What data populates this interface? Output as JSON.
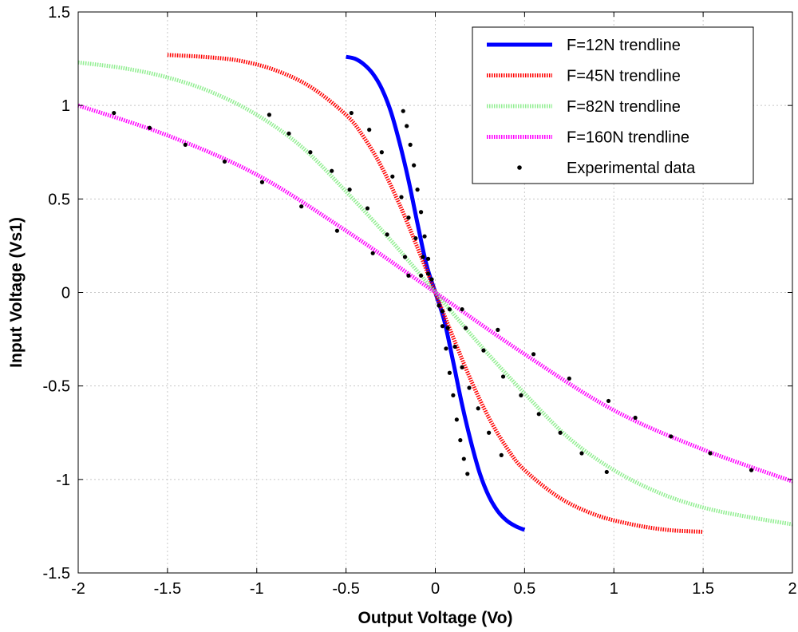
{
  "chart_data": {
    "type": "line",
    "xlabel": "Output Voltage (Vo)",
    "ylabel": "Input Voltage (Vs1)",
    "xlim": [
      -2,
      2
    ],
    "ylim": [
      -1.5,
      1.5
    ],
    "xticks": [
      -2,
      -1.5,
      -1,
      -0.5,
      0,
      0.5,
      1,
      1.5,
      2
    ],
    "xtick_labels": [
      "-2",
      "-1.5",
      "-1",
      "-0.5",
      "0",
      "0.5",
      "1",
      "1.5",
      "2"
    ],
    "yticks": [
      -1.5,
      -1,
      -0.5,
      0,
      0.5,
      1,
      1.5
    ],
    "ytick_labels": [
      "-1.5",
      "-1",
      "-0.5",
      "0",
      "0.5",
      "1",
      "1.5"
    ],
    "grid": true,
    "legend_position": "top-right",
    "series": [
      {
        "name": "F=12N trendline",
        "color": "#0000ff",
        "style": "solid",
        "x": [
          -0.5,
          -0.45,
          -0.4,
          -0.35,
          -0.3,
          -0.25,
          -0.2,
          -0.15,
          -0.1,
          -0.05,
          0,
          0.05,
          0.1,
          0.15,
          0.2,
          0.25,
          0.3,
          0.35,
          0.4,
          0.45,
          0.5
        ],
        "y": [
          1.26,
          1.25,
          1.22,
          1.17,
          1.09,
          0.97,
          0.8,
          0.6,
          0.37,
          0.15,
          0,
          -0.15,
          -0.37,
          -0.6,
          -0.8,
          -0.97,
          -1.09,
          -1.17,
          -1.22,
          -1.25,
          -1.27
        ]
      },
      {
        "name": "F=45N trendline",
        "color": "#ff0000",
        "style": "dotted",
        "x": [
          -1.5,
          -1.3,
          -1.1,
          -0.9,
          -0.7,
          -0.5,
          -0.4,
          -0.3,
          -0.2,
          -0.1,
          0,
          0.1,
          0.2,
          0.3,
          0.4,
          0.5,
          0.7,
          0.9,
          1.1,
          1.3,
          1.5
        ],
        "y": [
          1.27,
          1.26,
          1.24,
          1.19,
          1.1,
          0.95,
          0.83,
          0.67,
          0.47,
          0.24,
          0,
          -0.24,
          -0.47,
          -0.67,
          -0.83,
          -0.95,
          -1.1,
          -1.19,
          -1.24,
          -1.27,
          -1.28
        ]
      },
      {
        "name": "F=82N trendline",
        "color": "#90ee90",
        "style": "dotted",
        "x": [
          -2,
          -1.75,
          -1.5,
          -1.25,
          -1,
          -0.75,
          -0.5,
          -0.25,
          0,
          0.25,
          0.5,
          0.75,
          1,
          1.25,
          1.5,
          1.75,
          2
        ],
        "y": [
          1.23,
          1.2,
          1.15,
          1.07,
          0.95,
          0.78,
          0.54,
          0.28,
          0,
          -0.28,
          -0.54,
          -0.78,
          -0.95,
          -1.07,
          -1.15,
          -1.2,
          -1.24
        ]
      },
      {
        "name": "F=160N trendline",
        "color": "#ff00ff",
        "style": "dotted",
        "x": [
          -2,
          -1.5,
          -1,
          -0.5,
          0,
          0.5,
          1,
          1.5,
          2
        ],
        "y": [
          1.0,
          0.84,
          0.63,
          0.33,
          0,
          -0.33,
          -0.63,
          -0.84,
          -1.01
        ]
      }
    ],
    "experimental_data": {
      "name": "Experimental data",
      "color": "#000000",
      "points": [
        [
          -0.18,
          0.97
        ],
        [
          -0.16,
          0.89
        ],
        [
          -0.14,
          0.79
        ],
        [
          -0.12,
          0.68
        ],
        [
          -0.1,
          0.55
        ],
        [
          -0.08,
          0.43
        ],
        [
          -0.06,
          0.3
        ],
        [
          -0.04,
          0.18
        ],
        [
          -0.02,
          0.07
        ],
        [
          0.02,
          -0.07
        ],
        [
          0.04,
          -0.18
        ],
        [
          0.06,
          -0.3
        ],
        [
          0.08,
          -0.43
        ],
        [
          0.1,
          -0.55
        ],
        [
          0.12,
          -0.68
        ],
        [
          0.14,
          -0.79
        ],
        [
          0.16,
          -0.89
        ],
        [
          0.18,
          -0.97
        ],
        [
          -0.47,
          0.96
        ],
        [
          -0.37,
          0.87
        ],
        [
          -0.3,
          0.75
        ],
        [
          -0.24,
          0.62
        ],
        [
          -0.19,
          0.51
        ],
        [
          -0.15,
          0.4
        ],
        [
          -0.11,
          0.29
        ],
        [
          -0.07,
          0.19
        ],
        [
          -0.04,
          0.1
        ],
        [
          0.04,
          -0.1
        ],
        [
          0.07,
          -0.19
        ],
        [
          0.11,
          -0.29
        ],
        [
          0.15,
          -0.4
        ],
        [
          0.19,
          -0.51
        ],
        [
          0.24,
          -0.62
        ],
        [
          0.3,
          -0.75
        ],
        [
          0.37,
          -0.87
        ],
        [
          -0.93,
          0.95
        ],
        [
          -0.82,
          0.85
        ],
        [
          -0.7,
          0.75
        ],
        [
          -0.58,
          0.65
        ],
        [
          -0.48,
          0.55
        ],
        [
          -0.38,
          0.45
        ],
        [
          -0.27,
          0.31
        ],
        [
          -0.17,
          0.19
        ],
        [
          -0.08,
          0.09
        ],
        [
          0.08,
          -0.09
        ],
        [
          0.17,
          -0.19
        ],
        [
          0.27,
          -0.31
        ],
        [
          0.38,
          -0.45
        ],
        [
          0.48,
          -0.55
        ],
        [
          0.58,
          -0.65
        ],
        [
          0.7,
          -0.75
        ],
        [
          0.82,
          -0.86
        ],
        [
          0.96,
          -0.96
        ],
        [
          -1.8,
          0.96
        ],
        [
          -1.6,
          0.88
        ],
        [
          -1.4,
          0.79
        ],
        [
          -1.18,
          0.7
        ],
        [
          -0.97,
          0.59
        ],
        [
          -0.75,
          0.46
        ],
        [
          -0.55,
          0.33
        ],
        [
          -0.35,
          0.21
        ],
        [
          -0.15,
          0.09
        ],
        [
          0.15,
          -0.09
        ],
        [
          0.35,
          -0.2
        ],
        [
          0.55,
          -0.33
        ],
        [
          0.75,
          -0.46
        ],
        [
          0.97,
          -0.58
        ],
        [
          1.12,
          -0.67
        ],
        [
          1.32,
          -0.77
        ],
        [
          1.54,
          -0.86
        ],
        [
          1.77,
          -0.95
        ]
      ]
    }
  }
}
